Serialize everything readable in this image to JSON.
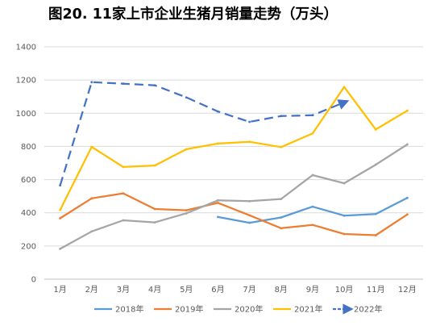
{
  "chart_data": {
    "type": "line",
    "title": "图20. 11家上市企业生猪月销量走势（万头）",
    "xlabel": "",
    "ylabel": "",
    "categories": [
      "1月",
      "2月",
      "3月",
      "4月",
      "5月",
      "6月",
      "7月",
      "8月",
      "9月",
      "10月",
      "11月",
      "12月"
    ],
    "yticks": [
      0,
      200,
      400,
      600,
      800,
      1000,
      1200,
      1400
    ],
    "ylim": [
      0,
      1400
    ],
    "grid": true,
    "legend_position": "bottom",
    "series": [
      {
        "name": "2018年",
        "color": "#5B9BD5",
        "style": "solid",
        "values": [
          null,
          null,
          null,
          null,
          null,
          375,
          340,
          372,
          437,
          383,
          393,
          490
        ]
      },
      {
        "name": "2019年",
        "color": "#ED7D31",
        "style": "solid",
        "values": [
          367,
          487,
          517,
          423,
          415,
          460,
          385,
          307,
          327,
          272,
          265,
          390
        ]
      },
      {
        "name": "2020年",
        "color": "#A5A5A5",
        "style": "solid",
        "values": [
          183,
          288,
          355,
          342,
          397,
          475,
          470,
          483,
          627,
          578,
          690,
          812
        ]
      },
      {
        "name": "2021年",
        "color": "#FFC000",
        "style": "solid",
        "values": [
          417,
          797,
          676,
          685,
          783,
          817,
          828,
          796,
          878,
          1158,
          902,
          1015
        ]
      },
      {
        "name": "2022年",
        "color": "#4472C4",
        "style": "dashed-arrow",
        "values": [
          565,
          1187,
          1178,
          1168,
          1095,
          1010,
          948,
          983,
          988,
          1065,
          null,
          null
        ]
      }
    ]
  }
}
